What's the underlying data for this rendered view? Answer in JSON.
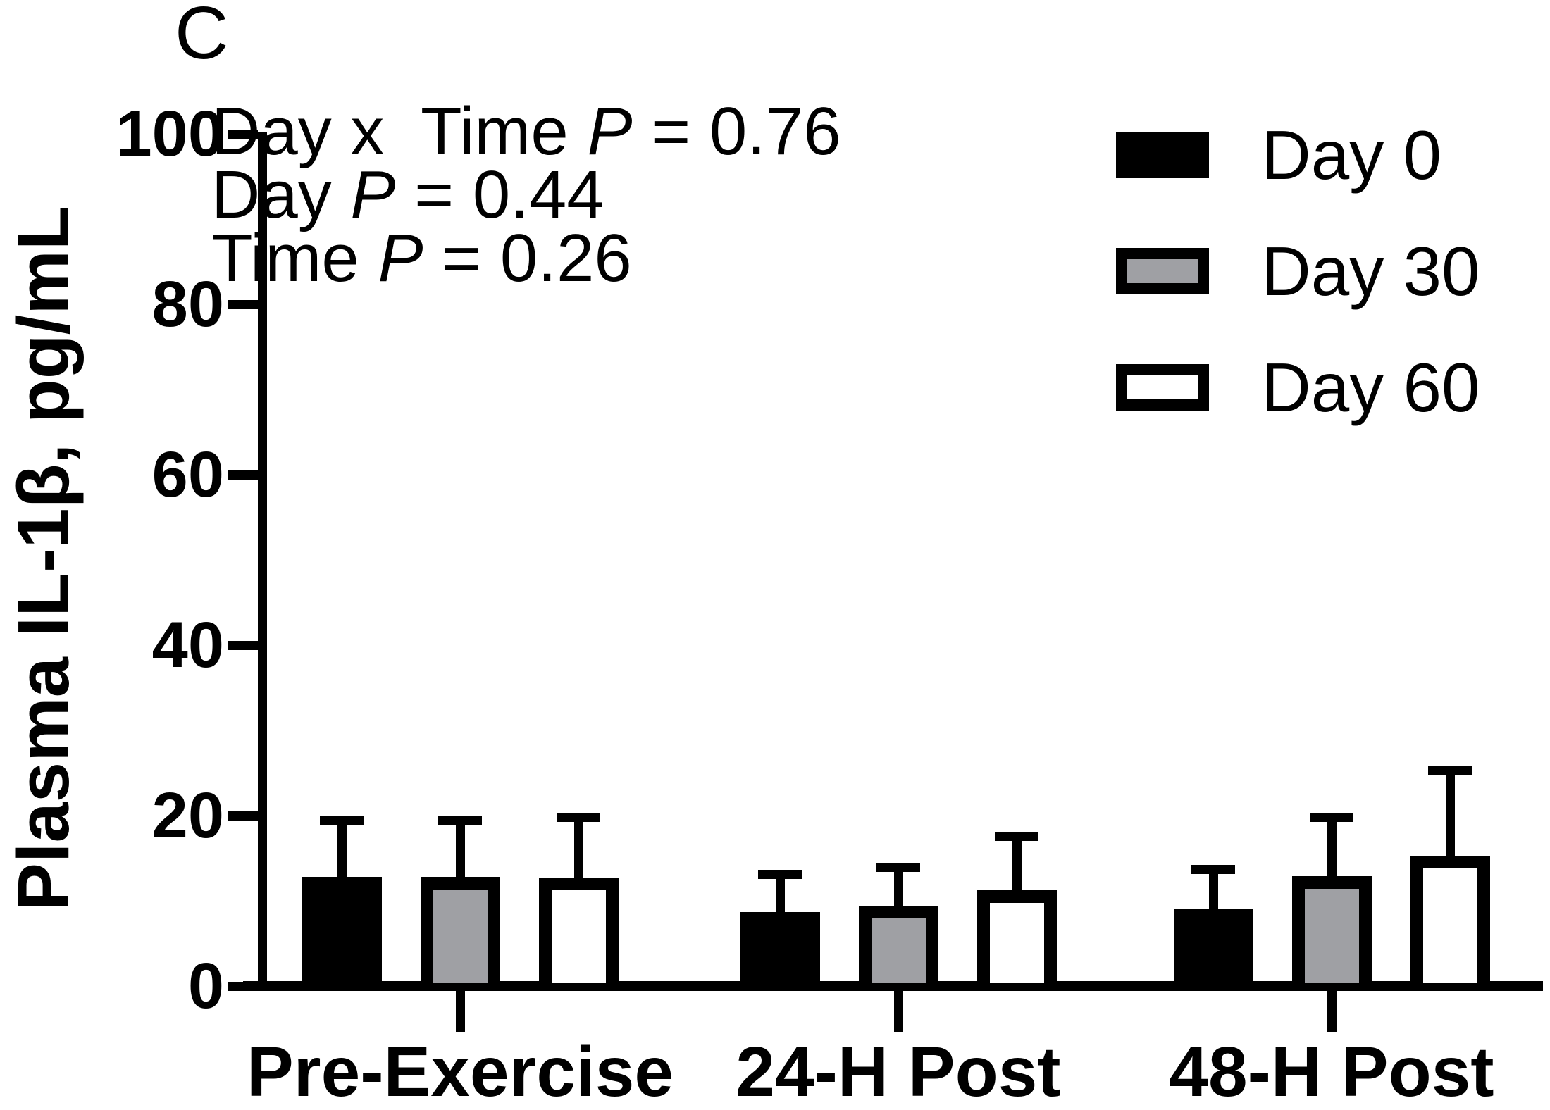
{
  "panel_label": "C",
  "annotations": [
    {
      "prefix": "Day x  Time ",
      "p": "P",
      "eq": " = 0.76"
    },
    {
      "prefix": "Day ",
      "p": "P",
      "eq": " = 0.44"
    },
    {
      "prefix": "Time ",
      "p": "P",
      "eq": " = 0.26"
    }
  ],
  "legend": [
    {
      "label": "Day 0"
    },
    {
      "label": "Day 30"
    },
    {
      "label": "Day 60"
    }
  ],
  "chart_data": {
    "type": "bar",
    "title": "",
    "panel": "C",
    "ylabel": "Plasma IL-1β, pg/mL",
    "xlabel": "",
    "ylim": [
      0,
      100
    ],
    "yticks": [
      0,
      20,
      40,
      60,
      80,
      100
    ],
    "categories": [
      "Pre-Exercise",
      "24-H Post",
      "48-H Post"
    ],
    "series": [
      {
        "name": "Day 0",
        "fill": "#000000",
        "values": [
          12.8,
          8.7,
          9.0
        ],
        "errors": [
          7.2,
          4.9,
          5.2
        ]
      },
      {
        "name": "Day 30",
        "fill": "#9fa0a4",
        "values": [
          12.8,
          9.4,
          12.9
        ],
        "errors": [
          7.2,
          5.1,
          7.4
        ]
      },
      {
        "name": "Day 60",
        "fill": "#ffffff",
        "values": [
          12.7,
          11.2,
          15.3
        ],
        "errors": [
          7.6,
          6.9,
          10.5
        ]
      }
    ],
    "error_bars": "upper SD whiskers with caps",
    "grid": false,
    "legend_position": "top-right",
    "stats": {
      "day_x_time_p": "0.76",
      "day_p": "0.44",
      "time_p": "0.26"
    }
  }
}
